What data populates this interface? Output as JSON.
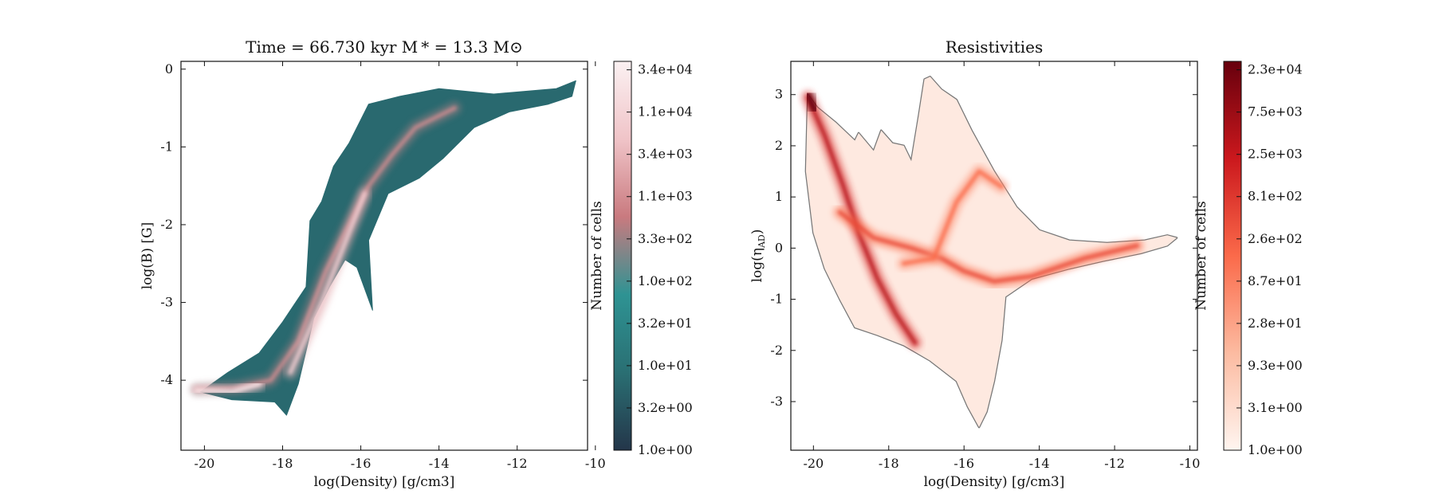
{
  "chart_data": [
    {
      "type": "heatmap",
      "title": "Time = 66.730 kyr    M * = 13.3 M⊙",
      "xlabel": "log(Density) [g/cm3]",
      "ylabel": "log(B) [G]",
      "xlim": [
        -20.6,
        -10.2
      ],
      "ylim": [
        -4.9,
        0.1
      ],
      "xticks": [
        -20,
        -18,
        -16,
        -14,
        -12,
        -10
      ],
      "yticks": [
        0,
        -1,
        -2,
        -3,
        -4
      ],
      "colorbar": {
        "label": "Number of cells",
        "scale": "log",
        "colormap": "teal-to-pink",
        "colors": [
          "#24364a",
          "#2a6f73",
          "#2e9393",
          "#c97a7f",
          "#f0c4c8",
          "#fbf1f2"
        ],
        "ticks": [
          "1.0e+00",
          "3.2e+00",
          "1.0e+01",
          "3.2e+01",
          "1.0e+02",
          "3.3e+02",
          "1.1e+03",
          "3.4e+03",
          "1.1e+04",
          "3.4e+04"
        ]
      },
      "region": [
        [
          -20.1,
          -4.15
        ],
        [
          -19.3,
          -4.25
        ],
        [
          -18.2,
          -4.28
        ],
        [
          -17.9,
          -4.45
        ],
        [
          -17.6,
          -4.05
        ],
        [
          -17.2,
          -3.2
        ],
        [
          -16.8,
          -2.8
        ],
        [
          -16.4,
          -2.45
        ],
        [
          -16.1,
          -2.55
        ],
        [
          -15.7,
          -3.1
        ],
        [
          -15.8,
          -2.2
        ],
        [
          -15.3,
          -1.6
        ],
        [
          -14.5,
          -1.4
        ],
        [
          -13.9,
          -1.15
        ],
        [
          -13.1,
          -0.75
        ],
        [
          -12.2,
          -0.55
        ],
        [
          -11.2,
          -0.45
        ],
        [
          -10.6,
          -0.35
        ],
        [
          -10.5,
          -0.15
        ],
        [
          -11.0,
          -0.25
        ],
        [
          -12.6,
          -0.32
        ],
        [
          -14.0,
          -0.25
        ],
        [
          -15.0,
          -0.35
        ],
        [
          -15.8,
          -0.45
        ],
        [
          -16.3,
          -0.95
        ],
        [
          -16.7,
          -1.25
        ],
        [
          -17.0,
          -1.7
        ],
        [
          -17.3,
          -1.95
        ],
        [
          -17.4,
          -2.8
        ],
        [
          -18.0,
          -3.25
        ],
        [
          -18.6,
          -3.65
        ],
        [
          -19.4,
          -3.9
        ]
      ],
      "ridges": [
        {
          "points": [
            [
              -20.2,
              -4.12
            ],
            [
              -19.2,
              -4.1
            ],
            [
              -18.3,
              -4.0
            ],
            [
              -17.6,
              -3.5
            ],
            [
              -16.9,
              -2.6
            ],
            [
              -16.3,
              -2.0
            ],
            [
              -15.8,
              -1.5
            ],
            [
              -15.2,
              -1.1
            ],
            [
              -14.6,
              -0.75
            ],
            [
              -13.6,
              -0.5
            ]
          ],
          "level": 0.55
        },
        {
          "points": [
            [
              -17.8,
              -3.9
            ],
            [
              -17.0,
              -3.0
            ],
            [
              -16.3,
              -2.1
            ],
            [
              -15.9,
              -1.6
            ]
          ],
          "level": 0.75
        },
        {
          "points": [
            [
              -20.2,
              -4.13
            ],
            [
              -19.3,
              -4.15
            ],
            [
              -18.6,
              -4.05
            ]
          ],
          "level": 0.85
        }
      ]
    },
    {
      "type": "heatmap",
      "title": "Resistivities",
      "xlabel": "log(Density) [g/cm3]",
      "ylabel": "log(ηAD)",
      "xlim": [
        -20.6,
        -9.8
      ],
      "ylim": [
        -3.95,
        3.65
      ],
      "xticks": [
        -20,
        -18,
        -16,
        -14,
        -12,
        -10
      ],
      "yticks": [
        3,
        2,
        1,
        0,
        -1,
        -2,
        -3
      ],
      "colorbar": {
        "label": "Number of cells",
        "scale": "log",
        "colormap": "Reds",
        "colors": [
          "#fff5f0",
          "#fcbba1",
          "#fb6a4a",
          "#cb181d",
          "#67000d"
        ],
        "ticks": [
          "1.0e+00",
          "3.1e+00",
          "9.3e+00",
          "2.8e+01",
          "8.7e+01",
          "2.6e+02",
          "8.1e+02",
          "2.5e+03",
          "7.5e+03",
          "2.3e+04"
        ]
      },
      "region": [
        [
          -20.15,
          3.0
        ],
        [
          -19.9,
          2.75
        ],
        [
          -19.4,
          2.45
        ],
        [
          -18.9,
          2.1
        ],
        [
          -18.8,
          2.25
        ],
        [
          -18.4,
          1.9
        ],
        [
          -18.2,
          2.3
        ],
        [
          -17.9,
          2.05
        ],
        [
          -17.6,
          2.0
        ],
        [
          -17.4,
          1.7
        ],
        [
          -17.2,
          2.6
        ],
        [
          -17.05,
          3.3
        ],
        [
          -16.9,
          3.35
        ],
        [
          -16.6,
          3.1
        ],
        [
          -16.2,
          2.9
        ],
        [
          -15.8,
          2.3
        ],
        [
          -15.2,
          1.5
        ],
        [
          -14.6,
          0.8
        ],
        [
          -14.0,
          0.35
        ],
        [
          -13.2,
          0.15
        ],
        [
          -12.2,
          0.1
        ],
        [
          -11.2,
          0.15
        ],
        [
          -10.6,
          0.25
        ],
        [
          -10.35,
          0.2
        ],
        [
          -10.6,
          0.05
        ],
        [
          -11.3,
          -0.1
        ],
        [
          -12.3,
          -0.25
        ],
        [
          -13.2,
          -0.4
        ],
        [
          -14.2,
          -0.6
        ],
        [
          -14.9,
          -0.95
        ],
        [
          -15.0,
          -1.8
        ],
        [
          -15.2,
          -2.6
        ],
        [
          -15.4,
          -3.2
        ],
        [
          -15.6,
          -3.5
        ],
        [
          -15.9,
          -3.1
        ],
        [
          -16.2,
          -2.6
        ],
        [
          -16.9,
          -2.2
        ],
        [
          -17.6,
          -1.9
        ],
        [
          -18.3,
          -1.7
        ],
        [
          -18.9,
          -1.55
        ],
        [
          -19.3,
          -1.0
        ],
        [
          -19.7,
          -0.4
        ],
        [
          -20.0,
          0.3
        ],
        [
          -20.2,
          1.5
        ]
      ],
      "ridges": [
        {
          "points": [
            [
              -20.15,
              2.95
            ],
            [
              -19.7,
              2.2
            ],
            [
              -19.2,
              1.2
            ],
            [
              -18.8,
              0.3
            ],
            [
              -18.3,
              -0.6
            ],
            [
              -17.8,
              -1.3
            ],
            [
              -17.3,
              -1.85
            ]
          ],
          "level": 0.7
        },
        {
          "points": [
            [
              -19.3,
              0.7
            ],
            [
              -18.4,
              0.2
            ],
            [
              -17.4,
              0.0
            ],
            [
              -16.6,
              -0.2
            ],
            [
              -16.0,
              -0.45
            ],
            [
              -15.2,
              -0.65
            ],
            [
              -14.2,
              -0.55
            ],
            [
              -12.8,
              -0.2
            ],
            [
              -11.4,
              0.05
            ]
          ],
          "level": 0.5
        },
        {
          "points": [
            [
              -17.6,
              -0.3
            ],
            [
              -16.8,
              -0.2
            ],
            [
              -16.2,
              0.9
            ],
            [
              -15.6,
              1.5
            ],
            [
              -15.0,
              1.2
            ]
          ],
          "level": 0.4
        },
        {
          "points": [
            [
              -20.15,
              3.0
            ],
            [
              -19.95,
              2.7
            ]
          ],
          "level": 1.0
        }
      ]
    }
  ]
}
